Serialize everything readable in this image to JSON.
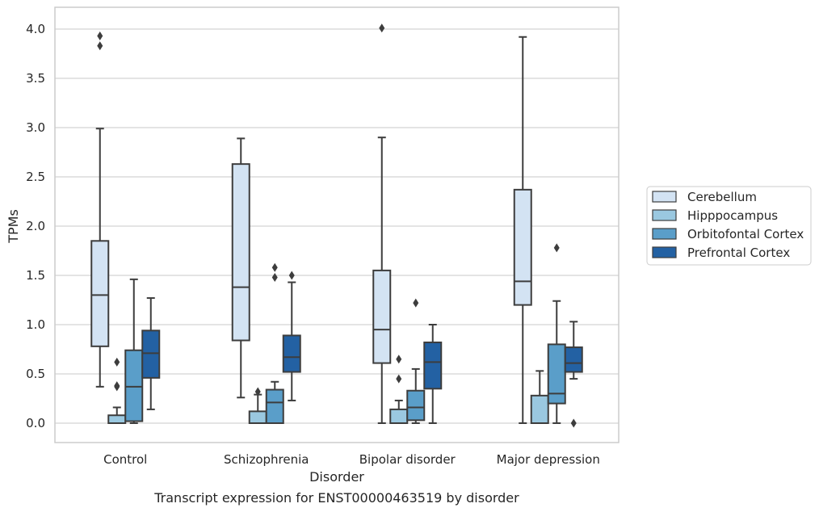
{
  "chart_data": {
    "type": "box",
    "title": "",
    "caption": "Transcript expression for ENST00000463519 by disorder",
    "xlabel": "Disorder",
    "ylabel": "TPMs",
    "ylim": [
      -0.2,
      4.22
    ],
    "yticks": [
      "0.0",
      "0.5",
      "1.0",
      "1.5",
      "2.0",
      "2.5",
      "3.0",
      "3.5",
      "4.0"
    ],
    "ytick_values": [
      0,
      0.5,
      1.0,
      1.5,
      2.0,
      2.5,
      3.0,
      3.5,
      4.0
    ],
    "grid": true,
    "legend_position": "right",
    "categories": [
      "Control",
      "Schizophrenia",
      "Bipolar disorder",
      "Major depression"
    ],
    "series": [
      {
        "name": "Cerebellum",
        "color": "#d3e3f3",
        "boxes": [
          {
            "whislo": 0.37,
            "q1": 0.78,
            "med": 1.3,
            "q3": 1.85,
            "whishi": 2.99,
            "fliers": [
              3.83,
              3.93
            ]
          },
          {
            "whislo": 0.26,
            "q1": 0.84,
            "med": 1.38,
            "q3": 2.63,
            "whishi": 2.89,
            "fliers": []
          },
          {
            "whislo": 0.0,
            "q1": 0.61,
            "med": 0.95,
            "q3": 1.55,
            "whishi": 2.9,
            "fliers": [
              4.01
            ]
          },
          {
            "whislo": 0.0,
            "q1": 1.2,
            "med": 1.44,
            "q3": 2.37,
            "whishi": 3.92,
            "fliers": []
          }
        ]
      },
      {
        "name": "Hipppocampus",
        "color": "#9ac8e0",
        "boxes": [
          {
            "whislo": 0.0,
            "q1": 0.0,
            "med": 0.0,
            "q3": 0.08,
            "whishi": 0.16,
            "fliers": [
              0.37,
              0.38,
              0.62
            ]
          },
          {
            "whislo": 0.0,
            "q1": 0.0,
            "med": 0.0,
            "q3": 0.12,
            "whishi": 0.29,
            "fliers": [
              0.32
            ]
          },
          {
            "whislo": 0.0,
            "q1": 0.0,
            "med": 0.0,
            "q3": 0.14,
            "whishi": 0.23,
            "fliers": [
              0.45,
              0.65
            ]
          },
          {
            "whislo": 0.0,
            "q1": 0.0,
            "med": 0.0,
            "q3": 0.28,
            "whishi": 0.53,
            "fliers": []
          }
        ]
      },
      {
        "name": "Orbitofontal Cortex",
        "color": "#5a9ec9",
        "boxes": [
          {
            "whislo": 0.0,
            "q1": 0.02,
            "med": 0.37,
            "q3": 0.74,
            "whishi": 1.46,
            "fliers": []
          },
          {
            "whislo": 0.0,
            "q1": 0.0,
            "med": 0.21,
            "q3": 0.34,
            "whishi": 0.42,
            "fliers": [
              1.48,
              1.58
            ]
          },
          {
            "whislo": 0.0,
            "q1": 0.03,
            "med": 0.16,
            "q3": 0.33,
            "whishi": 0.55,
            "fliers": [
              1.22
            ]
          },
          {
            "whislo": 0.0,
            "q1": 0.2,
            "med": 0.3,
            "q3": 0.8,
            "whishi": 1.24,
            "fliers": [
              1.78
            ]
          }
        ]
      },
      {
        "name": "Prefrontal Cortex",
        "color": "#2361a3",
        "boxes": [
          {
            "whislo": 0.14,
            "q1": 0.46,
            "med": 0.71,
            "q3": 0.94,
            "whishi": 1.27,
            "fliers": []
          },
          {
            "whislo": 0.23,
            "q1": 0.52,
            "med": 0.67,
            "q3": 0.89,
            "whishi": 1.43,
            "fliers": [
              1.5
            ]
          },
          {
            "whislo": 0.0,
            "q1": 0.35,
            "med": 0.62,
            "q3": 0.82,
            "whishi": 1.0,
            "fliers": []
          },
          {
            "whislo": 0.45,
            "q1": 0.52,
            "med": 0.61,
            "q3": 0.77,
            "whishi": 1.03,
            "fliers": [
              0.0
            ]
          }
        ]
      }
    ]
  }
}
